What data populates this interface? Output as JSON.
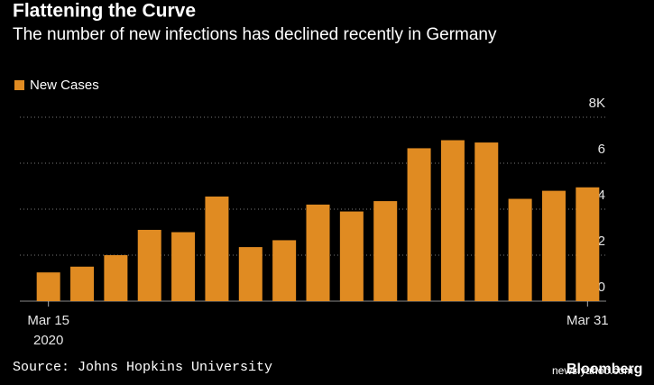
{
  "chart_data": {
    "type": "bar",
    "title": "Flattening the Curve",
    "subtitle": "The number of new infections has declined recently in Germany",
    "categories": [
      "Mar 15",
      null,
      null,
      null,
      null,
      null,
      null,
      null,
      null,
      null,
      null,
      null,
      null,
      null,
      null,
      null,
      "Mar 31"
    ],
    "x_sublabel": "2020",
    "series": [
      {
        "name": "New Cases",
        "color": "#e08b22",
        "values": [
          1.25,
          1.5,
          2.0,
          3.1,
          3.0,
          4.55,
          2.35,
          2.65,
          4.2,
          3.9,
          4.35,
          6.65,
          7.0,
          6.9,
          4.45,
          4.8,
          4.95
        ]
      }
    ],
    "ylim": [
      0,
      8
    ],
    "yticks": [
      0,
      2,
      4,
      6,
      {
        "value": 8,
        "label": "8K"
      }
    ],
    "grid": true,
    "legend": "top-left",
    "source": "Source: Johns Hopkins University",
    "watermark": "Bloomberg",
    "credit": "news.yahoo.com"
  }
}
